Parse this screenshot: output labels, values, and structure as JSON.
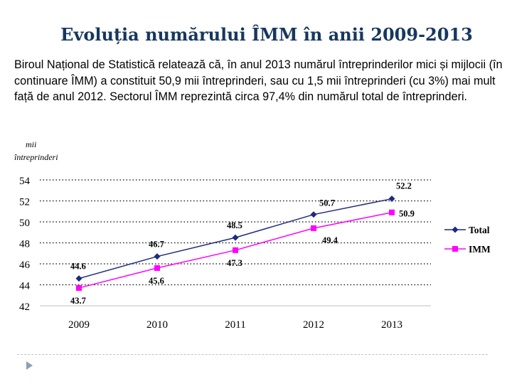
{
  "page": {
    "title": "Evoluția numărului ÎMM în anii 2009-2013",
    "intro": "Biroul Național de Statistică relatează că, în anul 2013 numărul întreprinderilor mici și mijlocii (în continuare ÎMM) a constituit 50,9 mii întreprinderi, sau cu 1,5 mii întreprinderi (cu 3%) mai mult față de anul 2012. Sectorul ÎMM reprezintă circa 97,4% din numărul total de întreprinderi."
  },
  "chart_data": {
    "type": "line",
    "title": "",
    "ylabel_line1": "mii",
    "ylabel_line2": "întreprinderi",
    "xlabel": "",
    "categories": [
      "2009",
      "2010",
      "2011",
      "2012",
      "2013"
    ],
    "ylim": [
      42,
      54
    ],
    "yticks": [
      42,
      44,
      46,
      48,
      50,
      52,
      54
    ],
    "grid": "horizontal dotted",
    "legend_position": "right",
    "series": [
      {
        "name": "Total",
        "values": [
          44.6,
          46.7,
          48.5,
          50.7,
          52.2
        ],
        "labels": [
          "44.6",
          "46.7",
          "48.5",
          "50.7",
          "52.2"
        ],
        "color": "#1F2A80",
        "marker": "diamond"
      },
      {
        "name": "IMM",
        "values": [
          43.7,
          45.6,
          47.3,
          49.4,
          50.9
        ],
        "labels": [
          "43.7",
          "45.6",
          "47.3",
          "49.4",
          "50.9"
        ],
        "color": "#FF00FF",
        "marker": "square"
      }
    ]
  }
}
